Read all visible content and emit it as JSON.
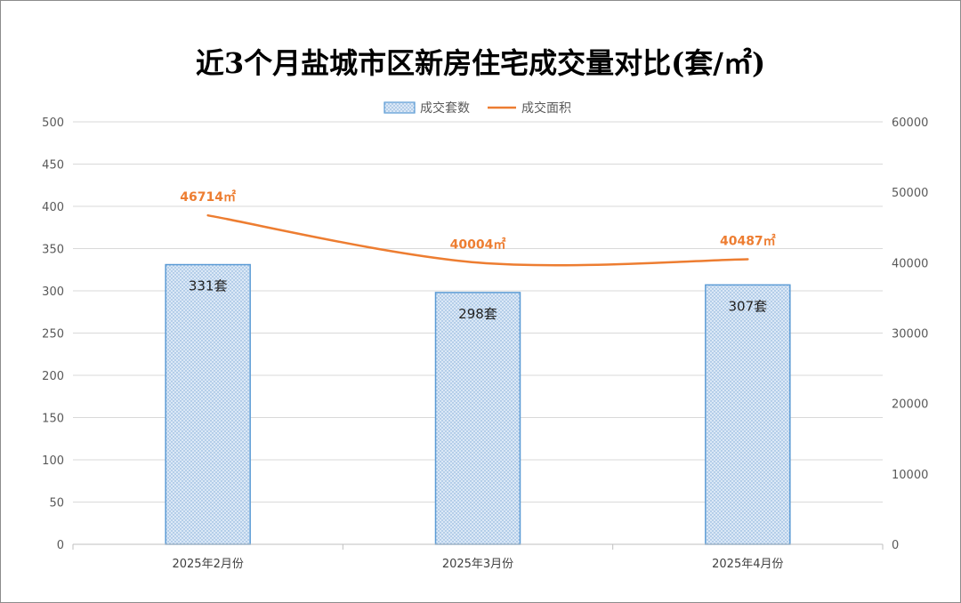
{
  "chart_data": {
    "type": "bar",
    "title": "近3个月盐城市区新房住宅成交量对比(套/㎡)",
    "categories": [
      "2025年2月份",
      "2025年3月份",
      "2025年4月份"
    ],
    "series": [
      {
        "name": "成交套数",
        "type": "bar",
        "axis": "left",
        "values": [
          331,
          298,
          307
        ],
        "labels": [
          "331套",
          "298套",
          "307套"
        ],
        "color": "#5b9bd5"
      },
      {
        "name": "成交面积",
        "type": "line",
        "axis": "right",
        "values": [
          46714,
          40004,
          40487
        ],
        "labels": [
          "46714㎡",
          "40004㎡",
          "40487㎡"
        ],
        "color": "#ed7d31"
      }
    ],
    "y_left": {
      "min": 0,
      "max": 500,
      "step": 50,
      "ticks": [
        "0",
        "50",
        "100",
        "150",
        "200",
        "250",
        "300",
        "350",
        "400",
        "450",
        "500"
      ]
    },
    "y_right": {
      "min": 0,
      "max": 60000,
      "step": 10000,
      "ticks": [
        "0",
        "10000",
        "20000",
        "30000",
        "40000",
        "50000",
        "60000"
      ]
    },
    "grid": true,
    "legend": "top"
  }
}
